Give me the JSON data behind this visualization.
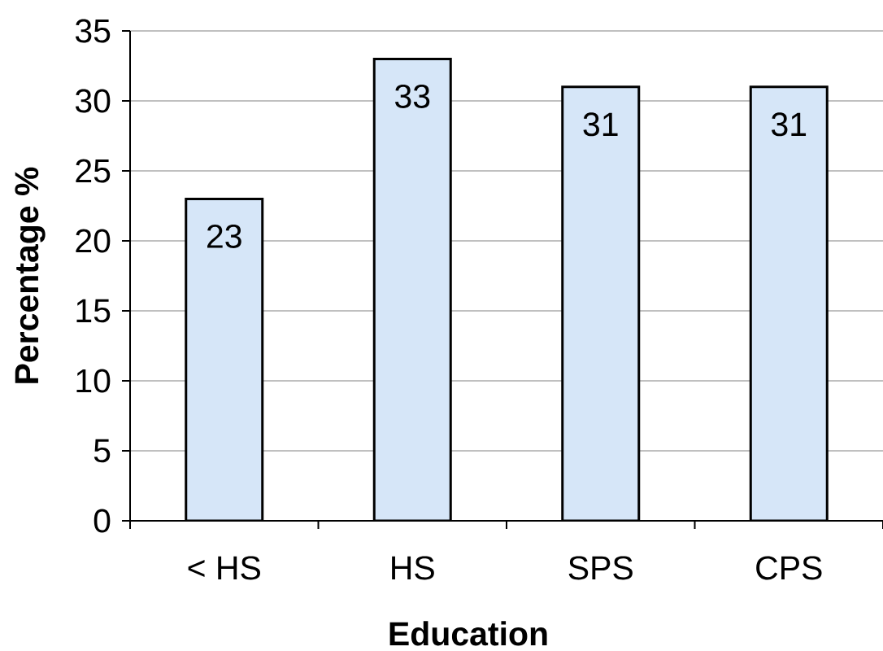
{
  "chart_data": {
    "type": "bar",
    "xlabel": "Education",
    "ylabel": "Percentage %",
    "categories": [
      "< HS",
      "HS",
      "SPS",
      "CPS"
    ],
    "values": [
      23,
      33,
      31,
      31
    ],
    "color": "#d6e6f8",
    "ylim": [
      0,
      35
    ],
    "yticks": [
      0,
      5,
      10,
      15,
      20,
      25,
      30,
      35
    ],
    "grid": "y",
    "data_labels": true
  }
}
